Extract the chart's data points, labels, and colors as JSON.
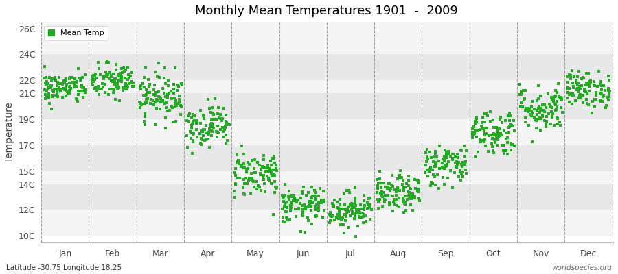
{
  "title": "Monthly Mean Temperatures 1901  -  2009",
  "ylabel": "Temperature",
  "xlabel_months": [
    "Jan",
    "Feb",
    "Mar",
    "Apr",
    "May",
    "Jun",
    "Jul",
    "Aug",
    "Sep",
    "Oct",
    "Nov",
    "Dec"
  ],
  "ytick_labels": [
    "10C",
    "12C",
    "14C",
    "15C",
    "17C",
    "19C",
    "21C",
    "22C",
    "24C",
    "26C"
  ],
  "ytick_values": [
    10,
    12,
    14,
    15,
    17,
    19,
    21,
    22,
    24,
    26
  ],
  "ylim": [
    9.5,
    26.5
  ],
  "dot_color": "#22aa22",
  "dot_size": 5,
  "legend_label": "Mean Temp",
  "footer_left": "Latitude -30.75 Longitude 18.25",
  "footer_right": "worldspecies.org",
  "bg_color": "#f0f0f0",
  "band_light": "#f5f5f5",
  "band_dark": "#e8e8e8",
  "seed": 42,
  "n_years": 109,
  "monthly_means": [
    21.4,
    21.9,
    20.8,
    18.5,
    14.8,
    12.3,
    12.0,
    13.2,
    15.5,
    18.0,
    19.8,
    21.3
  ],
  "monthly_stds": [
    0.6,
    0.7,
    0.9,
    0.8,
    0.9,
    0.7,
    0.7,
    0.7,
    0.8,
    0.9,
    0.9,
    0.7
  ]
}
